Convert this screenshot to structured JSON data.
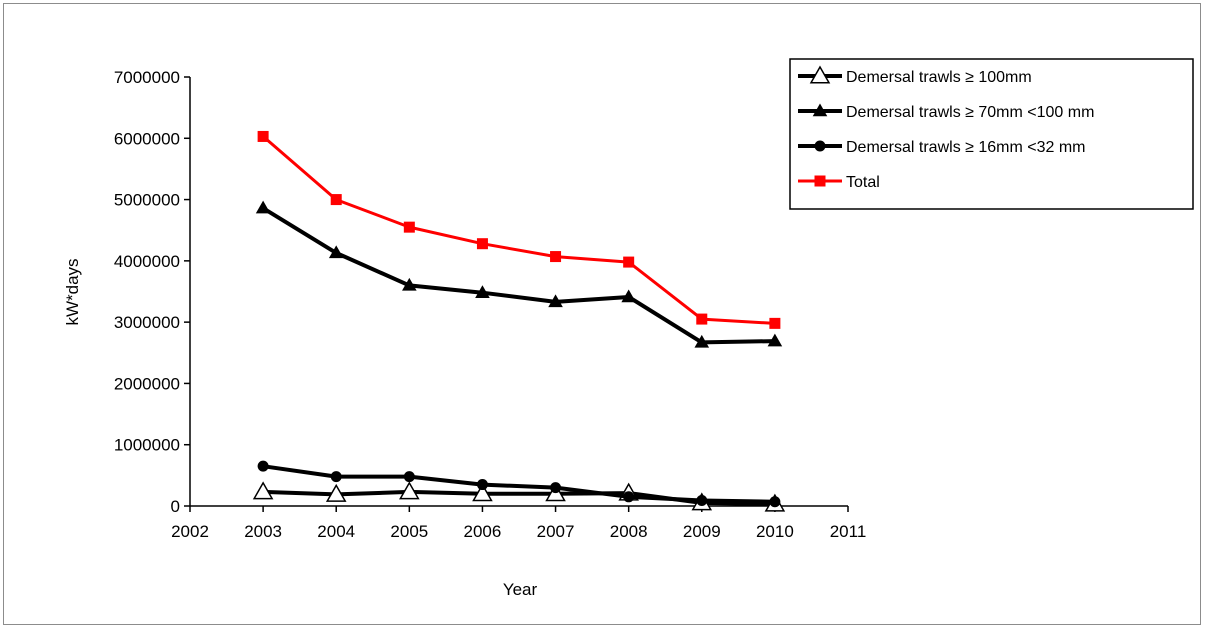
{
  "chart_data": {
    "type": "line",
    "xlabel": "Year",
    "ylabel": "kW*days",
    "xlim": [
      2002,
      2011
    ],
    "ylim": [
      0,
      7000000
    ],
    "x_ticks": [
      "2002",
      "2003",
      "2004",
      "2005",
      "2006",
      "2007",
      "2008",
      "2009",
      "2010",
      "2011"
    ],
    "y_ticks": [
      "0",
      "1000000",
      "2000000",
      "3000000",
      "4000000",
      "5000000",
      "6000000",
      "7000000"
    ],
    "grid": false,
    "legend_position": "top-right",
    "x": [
      2003,
      2004,
      2005,
      2006,
      2007,
      2008,
      2009,
      2010
    ],
    "series": [
      {
        "name": "Demersal trawls ≥ 100mm",
        "marker": "open-triangle",
        "color": "#000000",
        "values": [
          230000,
          190000,
          230000,
          200000,
          200000,
          210000,
          50000,
          30000
        ]
      },
      {
        "name": "Demersal trawls ≥ 70mm <100 mm",
        "marker": "filled-triangle",
        "color": "#000000",
        "values": [
          4860000,
          4130000,
          3600000,
          3480000,
          3330000,
          3410000,
          2670000,
          2690000
        ]
      },
      {
        "name": "Demersal trawls ≥ 16mm <32 mm",
        "marker": "circle",
        "color": "#000000",
        "values": [
          650000,
          480000,
          480000,
          350000,
          300000,
          150000,
          90000,
          70000
        ]
      },
      {
        "name": "Total",
        "marker": "square",
        "color": "#ff0000",
        "values": [
          6030000,
          5000000,
          4550000,
          4280000,
          4070000,
          3980000,
          3050000,
          2980000
        ]
      }
    ]
  }
}
